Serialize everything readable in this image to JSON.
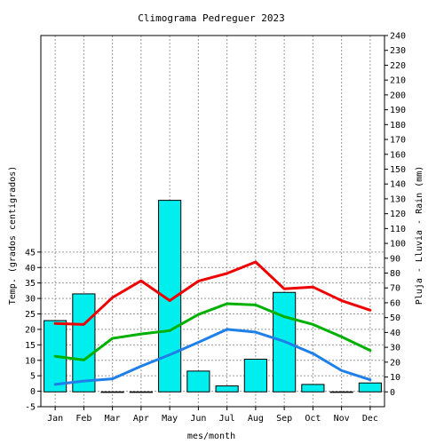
{
  "chart_data": {
    "type": "bar",
    "title": "Climograma Pedreguer 2023",
    "xlabel": "mes/month",
    "ylabel_left": "Temp. (grados centigrados)",
    "ylabel_right": "Pluja - Lluvia - Rain (mm)",
    "categories": [
      "Jan",
      "Feb",
      "Mar",
      "Apr",
      "May",
      "Jun",
      "Jul",
      "Aug",
      "Sep",
      "Oct",
      "Nov",
      "Dec"
    ],
    "y_left": {
      "min": -5,
      "max": 115,
      "ticks": [
        -5,
        0,
        5,
        10,
        15,
        20,
        25,
        30,
        35,
        40,
        45
      ]
    },
    "y_right": {
      "min": -10,
      "max": 240,
      "tick_step": 10
    },
    "grid": true,
    "series": [
      {
        "kind": "bar",
        "axis": "right",
        "color": "#00eeee",
        "values": [
          48,
          66,
          0,
          0,
          129,
          14,
          4,
          22,
          67,
          5,
          0,
          6
        ]
      },
      {
        "kind": "line",
        "axis": "left",
        "color": "#ee0000",
        "values": [
          21.9,
          21.6,
          30.3,
          35.7,
          29.3,
          35.6,
          38.1,
          41.8,
          33.1,
          33.7,
          29.3,
          26.2
        ]
      },
      {
        "kind": "line",
        "axis": "left",
        "color": "#00b000",
        "values": [
          11.3,
          10.1,
          17.1,
          18.5,
          19.6,
          24.8,
          28.3,
          27.9,
          24.1,
          21.6,
          17.6,
          13.2
        ]
      },
      {
        "kind": "line",
        "axis": "left",
        "color": "#1e7fe8",
        "values": [
          2.2,
          3.3,
          4.0,
          8.1,
          11.8,
          15.8,
          20.0,
          19.1,
          16.1,
          12.2,
          6.7,
          3.7
        ]
      }
    ]
  }
}
